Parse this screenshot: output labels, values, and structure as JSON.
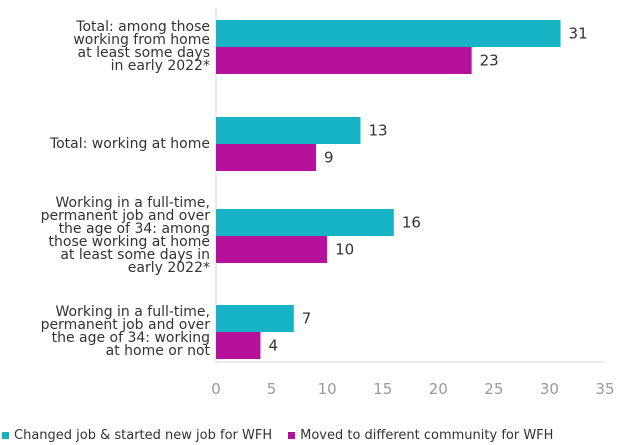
{
  "chart_data": {
    "type": "bar",
    "orientation": "horizontal",
    "categories": [
      "Total: among those working from home at least some days in early 2022*",
      "Total: working at home",
      "Working in a full-time, permanent job and over the age of 34: among those working at home at least some days in early 2022*",
      "Working in a full-time, permanent job and over the age of 34: working at home or not"
    ],
    "category_lines": [
      [
        "Total: among those",
        "working from home",
        "at least some days",
        "in early 2022*"
      ],
      [
        "Total: working at home"
      ],
      [
        "Working in a full-time,",
        "permanent job and over",
        "the age of 34: among",
        "those working at home",
        "at least some days in",
        "early 2022*"
      ],
      [
        "Working in a full-time,",
        "permanent job and over",
        "the age of 34: working",
        "at home or not"
      ]
    ],
    "series": [
      {
        "name": "Changed job & started new job for WFH",
        "color": "#16b3c4",
        "values": [
          31,
          13,
          16,
          7
        ]
      },
      {
        "name": "Moved to different community for WFH",
        "color": "#b5119a",
        "values": [
          23,
          9,
          10,
          4
        ]
      }
    ],
    "xlim": [
      0,
      35
    ],
    "xticks": [
      0,
      5,
      10,
      15,
      20,
      25,
      30,
      35
    ],
    "grid": false,
    "legend_position": "bottom-left",
    "title": "",
    "xlabel": "",
    "ylabel": ""
  }
}
